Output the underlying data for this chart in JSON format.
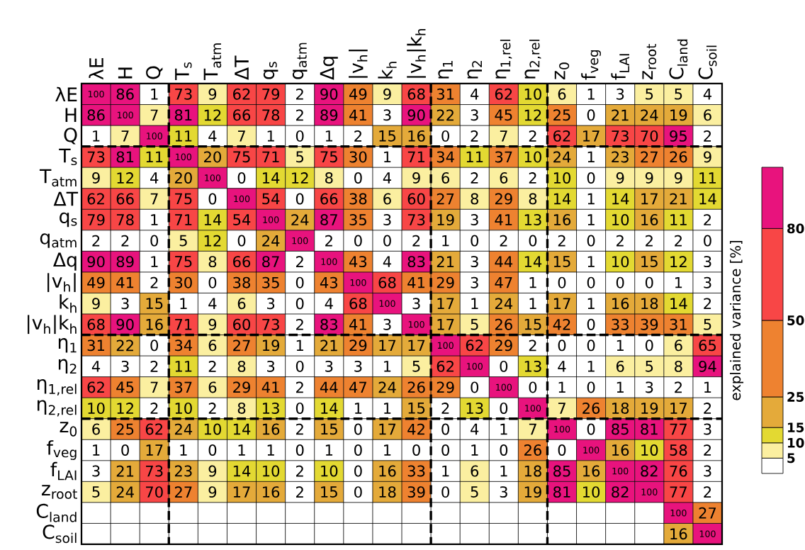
{
  "chart_data": {
    "type": "heatmap",
    "categories": [
      "λE",
      "H",
      "Q",
      "T$_{s}$",
      "T$_{atm}$",
      "ΔT",
      "q$_{s}$",
      "q$_{atm}$",
      "Δq",
      "|v$_{h}$|",
      "k$_{h}$",
      "|v$_{h}$|k$_{h}$",
      "η$_{1}$",
      "η$_{2}$",
      "η$_{1,rel}$",
      "η$_{2,rel}$",
      "z$_{0}$",
      "f$_{veg}$",
      "f$_{LAI}$",
      "z$_{root}$",
      "C$_{land}$",
      "C$_{soil}$"
    ],
    "y_categories": [
      "λE",
      "H",
      "Q",
      "T$_{s}$",
      "T$_{atm}$",
      "ΔT",
      "q$_{s}$",
      "q$_{atm}$",
      "Δq",
      "|v$_{h}$|",
      "k$_{h}$",
      "|v$_{h}$|k$_{h}$",
      "η$_{1}$",
      "η$_{2}$",
      "η$_{1,rel}$",
      "η$_{2,rel}$",
      "z$_{0}$",
      "f$_{veg}$",
      "f$_{LAI}$",
      "z$_{root}$",
      "C$_{land}$",
      "C$_{soil}$"
    ],
    "cells": [
      [
        100,
        86,
        1,
        73,
        9,
        62,
        79,
        2,
        90,
        49,
        9,
        68,
        31,
        4,
        62,
        10,
        6,
        1,
        3,
        5,
        5,
        4
      ],
      [
        86,
        100,
        7,
        81,
        12,
        66,
        78,
        2,
        89,
        41,
        3,
        90,
        22,
        3,
        45,
        12,
        25,
        0,
        21,
        24,
        19,
        6
      ],
      [
        1,
        7,
        100,
        11,
        4,
        7,
        1,
        0,
        1,
        2,
        15,
        16,
        0,
        2,
        7,
        2,
        62,
        17,
        73,
        70,
        95,
        2
      ],
      [
        73,
        81,
        11,
        100,
        20,
        75,
        71,
        5,
        75,
        30,
        1,
        71,
        34,
        11,
        37,
        10,
        24,
        1,
        23,
        27,
        26,
        9
      ],
      [
        9,
        12,
        4,
        20,
        100,
        0,
        14,
        12,
        8,
        0,
        4,
        9,
        6,
        2,
        6,
        2,
        10,
        0,
        9,
        9,
        9,
        11
      ],
      [
        62,
        66,
        7,
        75,
        0,
        100,
        54,
        0,
        66,
        38,
        6,
        60,
        27,
        8,
        29,
        8,
        14,
        1,
        14,
        17,
        21,
        14
      ],
      [
        79,
        78,
        1,
        71,
        14,
        54,
        100,
        24,
        87,
        35,
        3,
        73,
        19,
        3,
        41,
        13,
        16,
        1,
        10,
        16,
        11,
        2
      ],
      [
        2,
        2,
        0,
        5,
        12,
        0,
        24,
        100,
        2,
        0,
        0,
        2,
        1,
        0,
        2,
        0,
        2,
        0,
        2,
        2,
        2,
        0
      ],
      [
        90,
        89,
        1,
        75,
        8,
        66,
        87,
        2,
        100,
        43,
        4,
        83,
        21,
        3,
        44,
        14,
        15,
        1,
        10,
        15,
        12,
        3
      ],
      [
        49,
        41,
        2,
        30,
        0,
        38,
        35,
        0,
        43,
        100,
        68,
        41,
        29,
        3,
        47,
        1,
        0,
        0,
        0,
        0,
        1,
        3
      ],
      [
        9,
        3,
        15,
        1,
        4,
        6,
        3,
        0,
        4,
        68,
        100,
        3,
        17,
        1,
        24,
        1,
        17,
        1,
        16,
        18,
        14,
        2
      ],
      [
        68,
        90,
        16,
        71,
        9,
        60,
        73,
        2,
        83,
        41,
        3,
        100,
        17,
        5,
        26,
        15,
        42,
        0,
        33,
        39,
        31,
        5
      ],
      [
        31,
        22,
        0,
        34,
        6,
        27,
        19,
        1,
        21,
        29,
        17,
        17,
        100,
        62,
        29,
        2,
        0,
        0,
        1,
        0,
        6,
        65
      ],
      [
        4,
        3,
        2,
        11,
        2,
        8,
        3,
        0,
        3,
        3,
        1,
        5,
        62,
        100,
        0,
        13,
        4,
        1,
        6,
        5,
        8,
        94
      ],
      [
        62,
        45,
        7,
        37,
        6,
        29,
        41,
        2,
        44,
        47,
        24,
        26,
        29,
        0,
        100,
        0,
        1,
        0,
        1,
        3,
        2,
        1
      ],
      [
        10,
        12,
        2,
        10,
        2,
        8,
        13,
        0,
        14,
        1,
        1,
        15,
        2,
        13,
        0,
        100,
        7,
        26,
        18,
        19,
        17,
        2
      ],
      [
        6,
        25,
        62,
        24,
        10,
        14,
        16,
        2,
        15,
        0,
        17,
        42,
        0,
        4,
        1,
        7,
        100,
        0,
        85,
        81,
        77,
        3
      ],
      [
        1,
        0,
        17,
        1,
        0,
        1,
        1,
        0,
        1,
        0,
        1,
        0,
        0,
        1,
        0,
        26,
        0,
        100,
        16,
        10,
        58,
        2
      ],
      [
        3,
        21,
        73,
        23,
        9,
        14,
        10,
        2,
        10,
        0,
        16,
        33,
        1,
        6,
        1,
        18,
        85,
        16,
        100,
        82,
        76,
        3
      ],
      [
        5,
        24,
        70,
        27,
        9,
        17,
        16,
        2,
        15,
        0,
        18,
        39,
        0,
        5,
        3,
        19,
        81,
        10,
        82,
        100,
        77,
        2
      ],
      [
        null,
        null,
        null,
        null,
        null,
        null,
        null,
        null,
        null,
        null,
        null,
        null,
        null,
        null,
        null,
        null,
        null,
        null,
        null,
        null,
        100,
        27
      ],
      [
        null,
        null,
        null,
        null,
        null,
        null,
        null,
        null,
        null,
        null,
        null,
        null,
        null,
        null,
        null,
        null,
        null,
        null,
        null,
        null,
        16,
        100
      ]
    ],
    "data_labels": true,
    "grid": true,
    "clabel": "explained variance [%]",
    "clim": [
      0,
      100
    ],
    "cticks": [
      5,
      10,
      15,
      25,
      50,
      80
    ]
  }
}
